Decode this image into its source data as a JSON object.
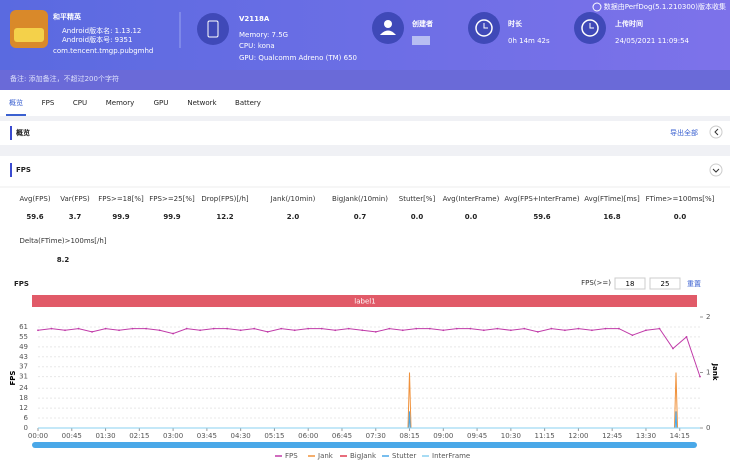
{
  "header": {
    "app_name": "和平精英",
    "android_version": "Android版本名: 1.13.12",
    "android_code": "Android版本号: 9351",
    "package": "com.tencent.tmgp.pubgmhd",
    "device": "V2118A",
    "memory": "Memory: 7.5G",
    "cpu": "CPU: kona",
    "gpu": "GPU: Qualcomm Adreno (TM) 650",
    "creator_label": "创建者",
    "duration_label": "时长",
    "duration": "0h 14m 42s",
    "upload_label": "上传时间",
    "upload_time": "24/05/2021 11:09:54",
    "version_note": "数据由PerfDog(5.1.210300)版本收集"
  },
  "note": "备注: 添加备注，不超过200个字符",
  "tabs": [
    "概览",
    "FPS",
    "CPU",
    "Memory",
    "GPU",
    "Network",
    "Battery"
  ],
  "overview": {
    "title": "概览",
    "export": "导出全部"
  },
  "fps_section": {
    "title": "FPS",
    "metrics": [
      {
        "label": "Avg(FPS)",
        "value": "59.6"
      },
      {
        "label": "Var(FPS)",
        "value": "3.7"
      },
      {
        "label": "FPS>=18[%]",
        "value": "99.9"
      },
      {
        "label": "FPS>=25[%]",
        "value": "99.9"
      },
      {
        "label": "Drop(FPS)[/h]",
        "value": "12.2"
      },
      {
        "label": "Jank(/10min)",
        "value": "2.0"
      },
      {
        "label": "BigJank(/10min)",
        "value": "0.7"
      },
      {
        "label": "Stutter[%]",
        "value": "0.0"
      },
      {
        "label": "Avg(InterFrame)",
        "value": "0.0"
      },
      {
        "label": "Avg(FPS+InterFrame)",
        "value": "59.6"
      },
      {
        "label": "Avg(FTime)[ms]",
        "value": "16.8"
      },
      {
        "label": "FTime>=100ms[%]",
        "value": "0.0"
      },
      {
        "label": "Delta(FTime)>100ms[/h]",
        "value": "8.2"
      }
    ]
  },
  "chart_data": {
    "type": "line",
    "title": "FPS",
    "threshold_label": "FPS(>=)",
    "thresholds": [
      18,
      25
    ],
    "reset": "重置",
    "label_bar": "label1",
    "ylabel": "FPS",
    "y2label": "Jank",
    "xlim": [
      0,
      882
    ],
    "xticks": [
      {
        "value": 0,
        "label": "00:00"
      },
      {
        "value": 45,
        "label": "00:45"
      },
      {
        "value": 90,
        "label": "01:30"
      },
      {
        "value": 135,
        "label": "02:15"
      },
      {
        "value": 180,
        "label": "03:00"
      },
      {
        "value": 225,
        "label": "03:45"
      },
      {
        "value": 270,
        "label": "04:30"
      },
      {
        "value": 315,
        "label": "05:15"
      },
      {
        "value": 360,
        "label": "06:00"
      },
      {
        "value": 405,
        "label": "06:45"
      },
      {
        "value": 450,
        "label": "07:30"
      },
      {
        "value": 495,
        "label": "08:15"
      },
      {
        "value": 540,
        "label": "09:00"
      },
      {
        "value": 585,
        "label": "09:45"
      },
      {
        "value": 630,
        "label": "10:30"
      },
      {
        "value": 675,
        "label": "11:15"
      },
      {
        "value": 720,
        "label": "12:00"
      },
      {
        "value": 765,
        "label": "12:45"
      },
      {
        "value": 810,
        "label": "13:30"
      },
      {
        "value": 855,
        "label": "14:15"
      }
    ],
    "ylim": [
      0,
      67
    ],
    "yticks": [
      0,
      6,
      12,
      18,
      24,
      31,
      37,
      43,
      49,
      55,
      61
    ],
    "y2lim": [
      0,
      2
    ],
    "y2ticks": [
      0,
      1,
      2
    ],
    "series": [
      {
        "name": "FPS",
        "color": "#c03aa8",
        "x": [
          0,
          18,
          36,
          54,
          72,
          90,
          108,
          126,
          144,
          162,
          180,
          198,
          216,
          234,
          252,
          270,
          288,
          306,
          324,
          342,
          360,
          378,
          396,
          414,
          432,
          450,
          468,
          486,
          504,
          522,
          540,
          558,
          576,
          594,
          612,
          630,
          648,
          666,
          684,
          702,
          720,
          738,
          756,
          774,
          792,
          810,
          828,
          846,
          864,
          882
        ],
        "values": [
          59,
          60,
          59,
          60,
          58,
          60,
          59,
          60,
          60,
          59,
          57,
          60,
          59,
          60,
          60,
          59,
          60,
          58,
          60,
          59,
          60,
          60,
          59,
          60,
          59,
          58,
          60,
          59,
          60,
          60,
          59,
          60,
          60,
          59,
          60,
          59,
          60,
          58,
          60,
          59,
          60,
          59,
          60,
          60,
          56,
          59,
          60,
          48,
          55,
          31
        ]
      },
      {
        "name": "Jank",
        "color": "#f0923c",
        "axis": "y2",
        "x": [
          0,
          493,
          495,
          497,
          848,
          850,
          852,
          882
        ],
        "values": [
          0,
          0,
          1,
          0,
          0,
          1,
          0,
          0
        ]
      },
      {
        "name": "BigJank",
        "color": "#e03c50",
        "axis": "y2",
        "x": [
          0,
          882
        ],
        "values": [
          0,
          0
        ]
      },
      {
        "name": "Stutter",
        "color": "#4aa8e8",
        "axis": "y2",
        "x": [
          0,
          494,
          495,
          496,
          849,
          850,
          851,
          882
        ],
        "values": [
          0,
          0,
          0.3,
          0,
          0,
          0.3,
          0,
          0
        ]
      },
      {
        "name": "InterFrame",
        "color": "#8ad0f0",
        "axis": "y2",
        "x": [
          0,
          882
        ],
        "values": [
          0,
          0
        ]
      }
    ]
  }
}
